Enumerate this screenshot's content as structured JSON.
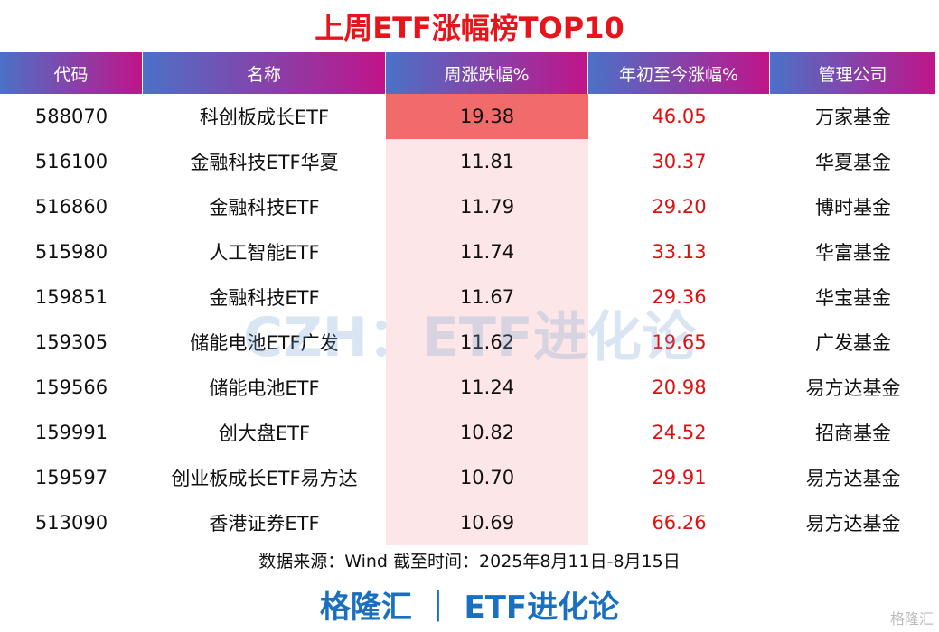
{
  "chart_data": {
    "type": "table",
    "title": "上周ETF涨幅榜TOP10",
    "columns": [
      "代码",
      "名称",
      "周涨跌幅%",
      "年初至今涨幅%",
      "管理公司"
    ],
    "rows": [
      [
        "588070",
        "科创板成长ETF",
        "19.38",
        "46.05",
        "万家基金"
      ],
      [
        "516100",
        "金融科技ETF华夏",
        "11.81",
        "30.37",
        "华夏基金"
      ],
      [
        "516860",
        "金融科技ETF",
        "11.79",
        "29.20",
        "博时基金"
      ],
      [
        "515980",
        "人工智能ETF",
        "11.74",
        "33.13",
        "华富基金"
      ],
      [
        "159851",
        "金融科技ETF",
        "11.67",
        "29.36",
        "华宝基金"
      ],
      [
        "159305",
        "储能电池ETF广发",
        "11.62",
        "19.65",
        "广发基金"
      ],
      [
        "159566",
        "储能电池ETF",
        "11.24",
        "20.98",
        "易方达基金"
      ],
      [
        "159991",
        "创大盘ETF",
        "10.82",
        "24.52",
        "招商基金"
      ],
      [
        "159597",
        "创业板成长ETF易方达",
        "10.70",
        "29.91",
        "易方达基金"
      ],
      [
        "513090",
        "香港证券ETF",
        "10.69",
        "66.26",
        "易方达基金"
      ]
    ],
    "highlight_colors": {
      "top": "#f26b6b",
      "other": "#fde6e8",
      "ytd_text": "#e01010",
      "title": "#e8141c",
      "brand": "#1a6fbe"
    }
  },
  "watermark": "CZH：ETF进化论",
  "source": "数据来源：Wind 截至时间：2025年8月11日-8月15日",
  "brand": "格隆汇 ｜ ETF进化论",
  "logo": "格隆汇"
}
